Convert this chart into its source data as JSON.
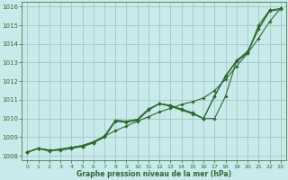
{
  "x": [
    0,
    1,
    2,
    3,
    4,
    5,
    6,
    7,
    8,
    9,
    10,
    11,
    12,
    13,
    14,
    15,
    16,
    17,
    18,
    19,
    20,
    21,
    22,
    23
  ],
  "line1": [
    1008.2,
    1008.4,
    1008.3,
    1008.3,
    1008.4,
    1008.5,
    1008.7,
    1009.05,
    1009.35,
    1009.6,
    1009.85,
    1010.1,
    1010.35,
    1010.55,
    1010.75,
    1010.9,
    1011.1,
    1011.5,
    1012.1,
    1012.8,
    1013.5,
    1014.3,
    1015.2,
    1015.9
  ],
  "line2": [
    1008.2,
    1008.4,
    1008.3,
    1008.35,
    1008.45,
    1008.55,
    1008.75,
    1009.05,
    1009.9,
    1009.85,
    1009.95,
    1010.5,
    1010.8,
    1010.7,
    1010.5,
    1010.3,
    1010.0,
    1010.0,
    1011.2,
    1013.1,
    1013.6,
    1014.8,
    1015.8,
    1015.9
  ],
  "line3": [
    1008.2,
    1008.4,
    1008.3,
    1008.35,
    1008.45,
    1008.55,
    1008.75,
    1009.05,
    1009.9,
    1009.85,
    1009.95,
    1010.5,
    1010.8,
    1010.7,
    1010.5,
    1010.3,
    1010.0,
    1011.2,
    1012.3,
    1013.1,
    1013.55,
    1014.8,
    1015.75,
    1015.85
  ],
  "line4": [
    1008.2,
    1008.4,
    1008.25,
    1008.35,
    1008.45,
    1008.5,
    1008.7,
    1009.0,
    1009.85,
    1009.8,
    1009.9,
    1010.45,
    1010.8,
    1010.65,
    1010.45,
    1010.25,
    1010.0,
    1011.2,
    1012.25,
    1013.05,
    1013.5,
    1015.0,
    1015.8,
    null
  ],
  "ylim": [
    1007.75,
    1016.25
  ],
  "yticks": [
    1008,
    1009,
    1010,
    1011,
    1012,
    1013,
    1014,
    1015,
    1016
  ],
  "xlim": [
    -0.5,
    23.5
  ],
  "xticks": [
    0,
    1,
    2,
    3,
    4,
    5,
    6,
    7,
    8,
    9,
    10,
    11,
    12,
    13,
    14,
    15,
    16,
    17,
    18,
    19,
    20,
    21,
    22,
    23
  ],
  "xlabel": "Graphe pression niveau de la mer (hPa)",
  "line_color": "#2d6a2d",
  "bg_color": "#c8eaea",
  "grid_color": "#9dbfbf",
  "marker": "D",
  "marker_size": 1.8,
  "linewidth": 0.8
}
